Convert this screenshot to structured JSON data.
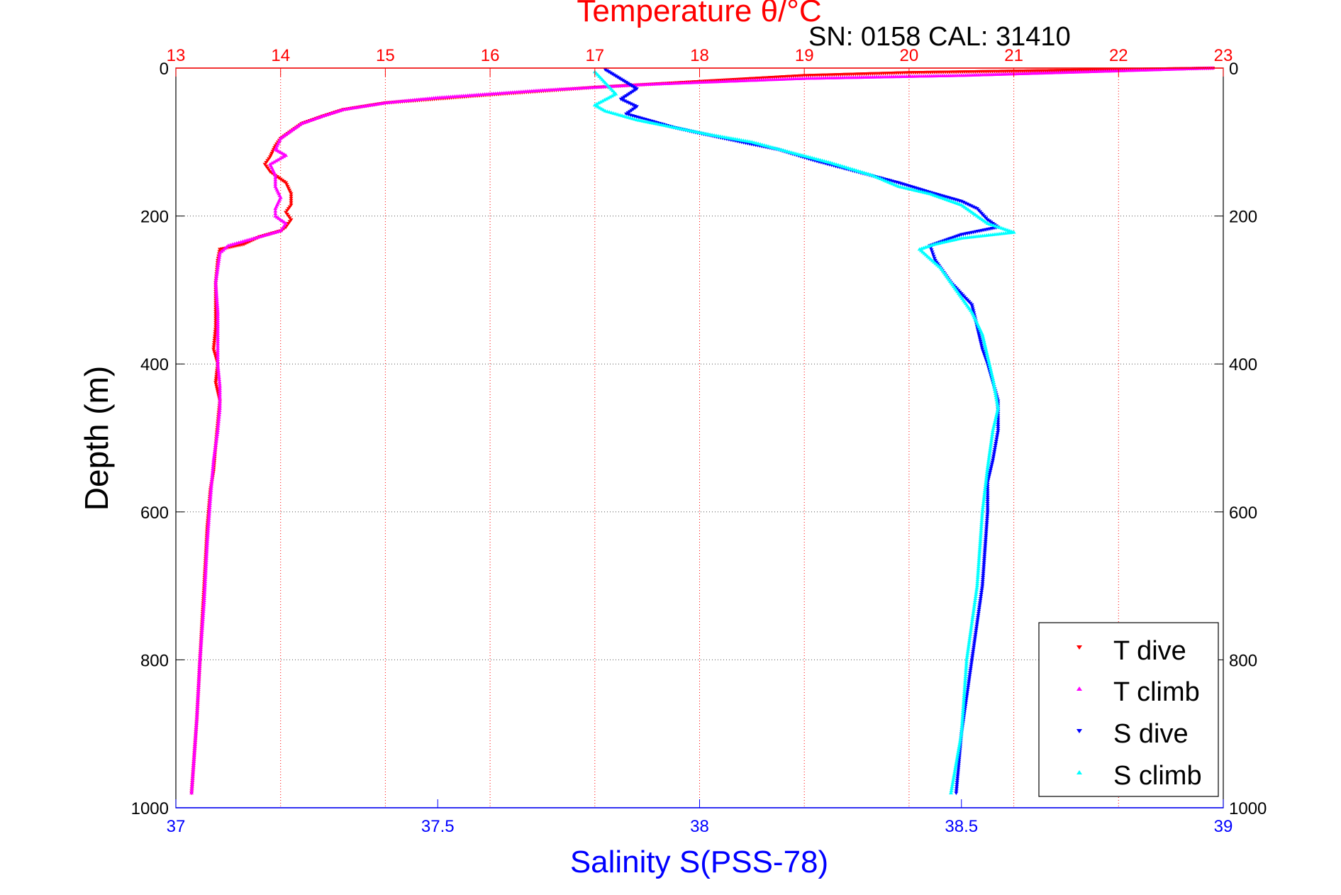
{
  "chart_data": {
    "type": "scatter",
    "title": "Temperature θ/°C",
    "annotation": "SN: 0158  CAL: 31410",
    "ylabel": "Depth (m)",
    "xlabel": "Salinity S(PSS-78)",
    "y_axis": {
      "range": [
        0,
        1000
      ],
      "inverted": true,
      "ticks": [
        0,
        200,
        400,
        600,
        800,
        1000
      ],
      "tick_labels": [
        "0",
        "200",
        "400",
        "600",
        "800",
        "1000"
      ]
    },
    "x_top_axis": {
      "quantity": "temperature",
      "range": [
        13,
        23
      ],
      "ticks": [
        13,
        14,
        15,
        16,
        17,
        18,
        19,
        20,
        21,
        22,
        23
      ],
      "tick_labels": [
        "13",
        "14",
        "15",
        "16",
        "17",
        "18",
        "19",
        "20",
        "21",
        "22",
        "23"
      ],
      "color": "#ff0000",
      "grid": true
    },
    "x_bottom_axis": {
      "quantity": "salinity",
      "range": [
        37,
        39
      ],
      "ticks": [
        37,
        37.5,
        38,
        38.5,
        39
      ],
      "tick_labels": [
        "37",
        "37.5",
        "38",
        "38.5",
        "39"
      ],
      "color": "#0000ff"
    },
    "grid": true,
    "legend": {
      "placement": "bottom-right",
      "entries": [
        "T dive",
        "T climb",
        "S dive",
        "S climb"
      ]
    },
    "series": [
      {
        "name": "T dive",
        "axis": "top",
        "marker": "down-triangle",
        "color": "#ff0000",
        "points": [
          [
            22.9,
            0
          ],
          [
            21.0,
            4
          ],
          [
            20.0,
            6
          ],
          [
            19.0,
            10
          ],
          [
            18.0,
            18
          ],
          [
            17.0,
            26
          ],
          [
            16.0,
            36
          ],
          [
            15.0,
            47
          ],
          [
            14.6,
            56
          ],
          [
            14.4,
            65
          ],
          [
            14.2,
            75
          ],
          [
            14.1,
            85
          ],
          [
            14.0,
            95
          ],
          [
            13.95,
            105
          ],
          [
            13.9,
            120
          ],
          [
            13.85,
            130
          ],
          [
            13.9,
            140
          ],
          [
            14.05,
            155
          ],
          [
            14.1,
            170
          ],
          [
            14.1,
            185
          ],
          [
            14.05,
            195
          ],
          [
            14.1,
            205
          ],
          [
            14.05,
            215
          ],
          [
            14.0,
            220
          ],
          [
            13.8,
            228
          ],
          [
            13.65,
            238
          ],
          [
            13.42,
            245
          ],
          [
            13.4,
            260
          ],
          [
            13.38,
            290
          ],
          [
            13.38,
            320
          ],
          [
            13.38,
            350
          ],
          [
            13.36,
            380
          ],
          [
            13.4,
            400
          ],
          [
            13.38,
            425
          ],
          [
            13.42,
            450
          ],
          [
            13.4,
            480
          ],
          [
            13.38,
            510
          ],
          [
            13.36,
            545
          ],
          [
            13.33,
            570
          ],
          [
            13.3,
            620
          ],
          [
            13.27,
            700
          ],
          [
            13.23,
            800
          ],
          [
            13.2,
            880
          ],
          [
            13.15,
            980
          ]
        ]
      },
      {
        "name": "T climb",
        "axis": "top",
        "marker": "up-triangle",
        "color": "#ff00ff",
        "points": [
          [
            22.9,
            0
          ],
          [
            20.5,
            10
          ],
          [
            19.0,
            14
          ],
          [
            17.5,
            22
          ],
          [
            16.5,
            30
          ],
          [
            15.5,
            40
          ],
          [
            15.0,
            47
          ],
          [
            14.6,
            56
          ],
          [
            14.4,
            65
          ],
          [
            14.2,
            75
          ],
          [
            14.1,
            85
          ],
          [
            14.0,
            95
          ],
          [
            13.95,
            110
          ],
          [
            14.05,
            118
          ],
          [
            13.9,
            130
          ],
          [
            13.95,
            145
          ],
          [
            13.95,
            160
          ],
          [
            14.0,
            175
          ],
          [
            13.95,
            190
          ],
          [
            13.95,
            200
          ],
          [
            14.05,
            210
          ],
          [
            14.0,
            220
          ],
          [
            13.7,
            232
          ],
          [
            13.5,
            240
          ],
          [
            13.42,
            250
          ],
          [
            13.38,
            290
          ],
          [
            13.4,
            330
          ],
          [
            13.4,
            370
          ],
          [
            13.4,
            400
          ],
          [
            13.42,
            430
          ],
          [
            13.42,
            460
          ],
          [
            13.4,
            490
          ],
          [
            13.36,
            530
          ],
          [
            13.33,
            580
          ],
          [
            13.3,
            640
          ],
          [
            13.27,
            720
          ],
          [
            13.23,
            800
          ],
          [
            13.2,
            880
          ],
          [
            13.15,
            980
          ]
        ]
      },
      {
        "name": "S dive",
        "axis": "bottom",
        "marker": "down-triangle",
        "color": "#0000ff",
        "points": [
          [
            37.82,
            2
          ],
          [
            37.85,
            15
          ],
          [
            37.88,
            28
          ],
          [
            37.85,
            42
          ],
          [
            37.88,
            52
          ],
          [
            37.86,
            62
          ],
          [
            37.9,
            70
          ],
          [
            37.95,
            80
          ],
          [
            38.0,
            88
          ],
          [
            38.08,
            100
          ],
          [
            38.15,
            110
          ],
          [
            38.22,
            125
          ],
          [
            38.3,
            140
          ],
          [
            38.38,
            155
          ],
          [
            38.45,
            170
          ],
          [
            38.5,
            180
          ],
          [
            38.53,
            190
          ],
          [
            38.55,
            205
          ],
          [
            38.57,
            215
          ],
          [
            38.5,
            225
          ],
          [
            38.44,
            240
          ],
          [
            38.45,
            260
          ],
          [
            38.48,
            290
          ],
          [
            38.52,
            320
          ],
          [
            38.53,
            350
          ],
          [
            38.54,
            380
          ],
          [
            38.55,
            400
          ],
          [
            38.56,
            425
          ],
          [
            38.57,
            450
          ],
          [
            38.57,
            490
          ],
          [
            38.56,
            530
          ],
          [
            38.55,
            560
          ],
          [
            38.55,
            600
          ],
          [
            38.54,
            700
          ],
          [
            38.52,
            800
          ],
          [
            38.5,
            900
          ],
          [
            38.49,
            980
          ]
        ]
      },
      {
        "name": "S climb",
        "axis": "bottom",
        "marker": "up-triangle",
        "color": "#00ffff",
        "points": [
          [
            37.8,
            5
          ],
          [
            37.82,
            20
          ],
          [
            37.84,
            35
          ],
          [
            37.8,
            50
          ],
          [
            37.82,
            58
          ],
          [
            37.88,
            70
          ],
          [
            37.95,
            80
          ],
          [
            38.02,
            90
          ],
          [
            38.1,
            100
          ],
          [
            38.18,
            115
          ],
          [
            38.25,
            128
          ],
          [
            38.33,
            145
          ],
          [
            38.38,
            160
          ],
          [
            38.44,
            170
          ],
          [
            38.5,
            185
          ],
          [
            38.52,
            195
          ],
          [
            38.55,
            210
          ],
          [
            38.6,
            222
          ],
          [
            38.5,
            230
          ],
          [
            38.45,
            238
          ],
          [
            38.42,
            245
          ],
          [
            38.46,
            270
          ],
          [
            38.49,
            300
          ],
          [
            38.52,
            330
          ],
          [
            38.54,
            360
          ],
          [
            38.55,
            390
          ],
          [
            38.56,
            420
          ],
          [
            38.57,
            460
          ],
          [
            38.56,
            490
          ],
          [
            38.55,
            540
          ],
          [
            38.54,
            600
          ],
          [
            38.53,
            700
          ],
          [
            38.51,
            800
          ],
          [
            38.5,
            900
          ],
          [
            38.48,
            980
          ]
        ]
      }
    ]
  }
}
